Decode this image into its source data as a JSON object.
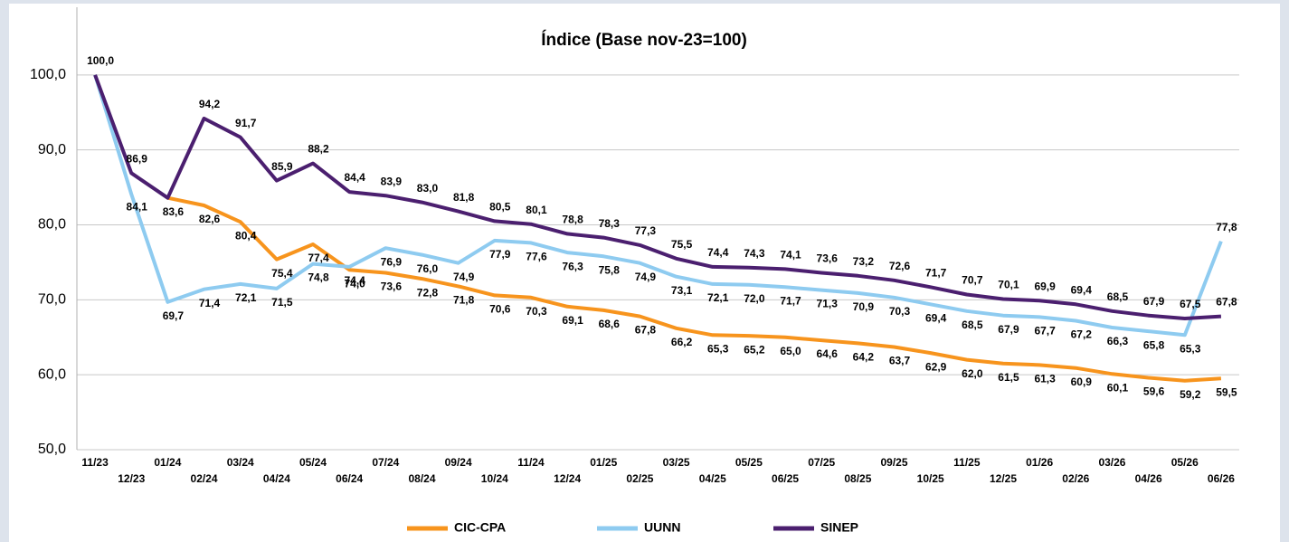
{
  "chart_data": {
    "type": "line",
    "title": "Índice (Base nov-23=100)",
    "categories": [
      "11/23",
      "12/23",
      "01/24",
      "02/24",
      "03/24",
      "04/24",
      "05/24",
      "06/24",
      "07/24",
      "08/24",
      "09/24",
      "10/24",
      "11/24",
      "12/24",
      "01/25",
      "02/25",
      "03/25",
      "04/25",
      "05/25",
      "06/25",
      "07/25",
      "08/25",
      "09/25",
      "10/25",
      "11/25",
      "12/25",
      "01/26",
      "02/26",
      "03/26",
      "04/26",
      "05/26",
      "06/26"
    ],
    "series": [
      {
        "name": "CIC-CPA",
        "color": "#f7941d",
        "values": [
          null,
          null,
          83.6,
          82.6,
          80.4,
          75.4,
          77.4,
          74.0,
          73.6,
          72.8,
          71.8,
          70.6,
          70.3,
          69.1,
          68.6,
          67.8,
          66.2,
          65.3,
          65.2,
          65.0,
          64.6,
          64.2,
          63.7,
          62.9,
          62.0,
          61.5,
          61.3,
          60.9,
          60.1,
          59.6,
          59.2,
          59.5
        ],
        "value_labels": [
          null,
          null,
          "83,6",
          "82,6",
          "80,4",
          "75,4",
          "77,4",
          "74,0",
          "73,6",
          "72,8",
          "71,8",
          "70,6",
          "70,3",
          "69,1",
          "68,6",
          "67,8",
          "66,2",
          "65,3",
          "65,2",
          "65,0",
          "64,6",
          "64,2",
          "63,7",
          "62,9",
          "62,0",
          "61,5",
          "61,3",
          "60,9",
          "60,1",
          "59,6",
          "59,2",
          "59,5"
        ]
      },
      {
        "name": "UUNN",
        "color": "#8ecbf0",
        "values": [
          100.0,
          84.1,
          69.7,
          71.4,
          72.1,
          71.5,
          74.8,
          74.4,
          76.9,
          76.0,
          74.9,
          77.9,
          77.6,
          76.3,
          75.8,
          74.9,
          73.1,
          72.1,
          72.0,
          71.7,
          71.3,
          70.9,
          70.3,
          69.4,
          68.5,
          67.9,
          67.7,
          67.2,
          66.3,
          65.8,
          65.3,
          77.8
        ],
        "value_labels": [
          null,
          "84,1",
          "69,7",
          "71,4",
          "72,1",
          "71,5",
          "74,8",
          "74,4",
          "76,9",
          "76,0",
          "74,9",
          "77,9",
          "77,6",
          "76,3",
          "75,8",
          "74,9",
          "73,1",
          "72,1",
          "72,0",
          "71,7",
          "71,3",
          "70,9",
          "70,3",
          "69,4",
          "68,5",
          "67,9",
          "67,7",
          "67,2",
          "66,3",
          "65,8",
          "65,3",
          "77,8"
        ]
      },
      {
        "name": "SINEP",
        "color": "#4b1f6f",
        "values": [
          100.0,
          86.9,
          83.6,
          94.2,
          91.7,
          85.9,
          88.2,
          84.4,
          83.9,
          83.0,
          81.8,
          80.5,
          80.1,
          78.8,
          78.3,
          77.3,
          75.5,
          74.4,
          74.3,
          74.1,
          73.6,
          73.2,
          72.6,
          71.7,
          70.7,
          70.1,
          69.9,
          69.4,
          68.5,
          67.9,
          67.5,
          67.8
        ],
        "value_labels": [
          "100,0",
          "86,9",
          null,
          "94,2",
          "91,7",
          "85,9",
          "88,2",
          "84,4",
          "83,9",
          "83,0",
          "81,8",
          "80,5",
          "80,1",
          "78,8",
          "78,3",
          "77,3",
          "75,5",
          "74,4",
          "74,3",
          "74,1",
          "73,6",
          "73,2",
          "72,6",
          "71,7",
          "70,7",
          "70,1",
          "69,9",
          "69,4",
          "68,5",
          "67,9",
          "67,5",
          "67,8"
        ]
      }
    ],
    "ylim": [
      50,
      110
    ],
    "yticks": [
      {
        "value": 50,
        "label": "50,0"
      },
      {
        "value": 60,
        "label": "60,0"
      },
      {
        "value": 70,
        "label": "70,0"
      },
      {
        "value": 80,
        "label": "80,0"
      },
      {
        "value": 90,
        "label": "90,0"
      },
      {
        "value": 100,
        "label": "100,0"
      }
    ],
    "grid": true,
    "legend": "bottom"
  }
}
